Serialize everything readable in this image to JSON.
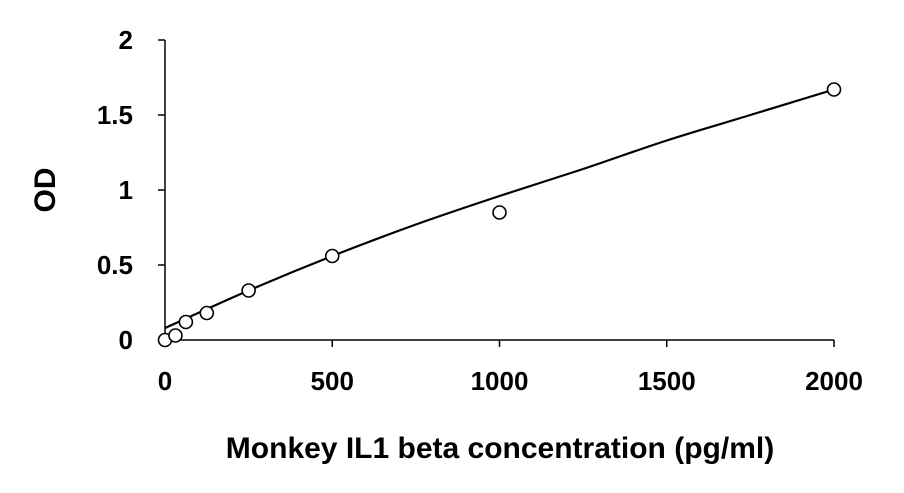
{
  "chart_data": {
    "type": "scatter",
    "title": "",
    "xlabel": "Monkey IL1 beta concentration (pg/ml)",
    "ylabel": "OD",
    "xlim": [
      0,
      2000
    ],
    "ylim": [
      0,
      2
    ],
    "x_ticks": [
      0,
      500,
      1000,
      1500,
      2000
    ],
    "y_ticks": [
      0,
      0.5,
      1,
      1.5,
      2
    ],
    "x_tick_labels": [
      "0",
      "500",
      "1000",
      "1500",
      "2000"
    ],
    "y_tick_labels": [
      "0",
      "0.5",
      "1",
      "1.5",
      "2"
    ],
    "grid": false,
    "legend": "none",
    "series": [
      {
        "type": "scatter",
        "marker": "open-circle",
        "x": [
          0,
          31.25,
          62.5,
          125,
          250,
          500,
          1000,
          2000
        ],
        "y": [
          0.0,
          0.03,
          0.12,
          0.18,
          0.33,
          0.56,
          0.85,
          1.67
        ]
      },
      {
        "type": "line",
        "x": [
          0,
          250,
          500,
          750,
          1000,
          1250,
          1500,
          1750,
          2000
        ],
        "y": [
          0.08,
          0.33,
          0.56,
          0.77,
          0.96,
          1.14,
          1.33,
          1.5,
          1.67
        ]
      }
    ],
    "colors": {
      "axis": "#000000",
      "marker_stroke": "#000000",
      "marker_fill": "#ffffff",
      "line": "#000000"
    }
  }
}
